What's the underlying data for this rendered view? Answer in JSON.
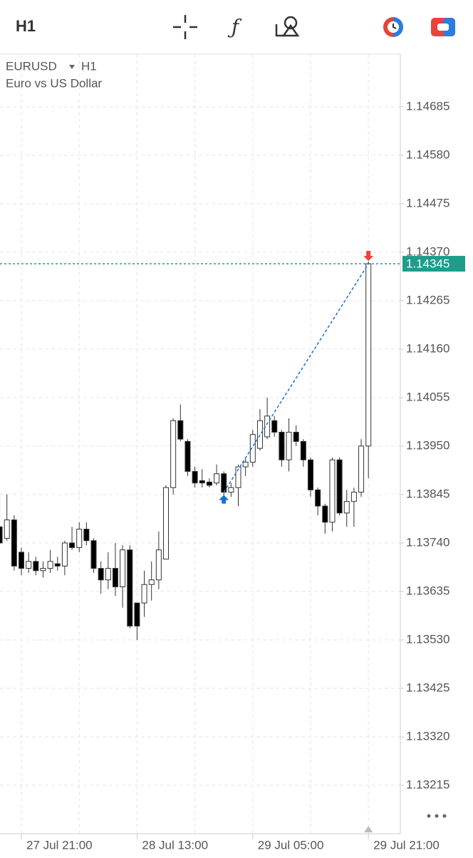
{
  "toolbar": {
    "timeframe": "H1"
  },
  "chart_data": {
    "type": "candlestick",
    "symbol": "EURUSD",
    "timeframe": "H1",
    "subtitle": "Euro vs US Dollar",
    "categories": [
      null,
      null,
      null,
      "27 Jul 21:00",
      null,
      null,
      null,
      null,
      null,
      null,
      null,
      null,
      null,
      null,
      null,
      null,
      null,
      null,
      null,
      "28 Jul 13:00",
      null,
      null,
      null,
      null,
      null,
      null,
      null,
      null,
      null,
      null,
      null,
      null,
      null,
      null,
      null,
      "29 Jul 05:00",
      null,
      null,
      null,
      null,
      null,
      null,
      null,
      null,
      null,
      null,
      null,
      null,
      null,
      null,
      null,
      "29 Jul 21:00"
    ],
    "open": [
      1.13775,
      1.1375,
      1.1379,
      1.1372,
      1.13685,
      1.137,
      1.1368,
      1.13685,
      1.13695,
      1.1369,
      1.1374,
      1.1373,
      1.1377,
      1.13745,
      1.13685,
      1.1366,
      1.13685,
      1.13645,
      1.13725,
      1.1361,
      1.1361,
      1.1365,
      1.1366,
      1.13705,
      1.1386,
      1.14005,
      1.1396,
      1.13895,
      1.13875,
      1.13872,
      1.1387,
      1.1389,
      1.1385,
      1.1386,
      1.13905,
      1.13915,
      1.13945,
      1.1397,
      1.14005,
      1.1398,
      1.1392,
      1.1398,
      1.1396,
      1.1392,
      1.13855,
      1.1382,
      1.13785,
      1.1392,
      1.13805,
      1.1383,
      1.1385,
      1.1395
    ],
    "high": [
      1.1385,
      1.13845,
      1.138,
      1.1373,
      1.1372,
      1.1371,
      1.137,
      1.13725,
      1.1371,
      1.13745,
      1.13775,
      1.13785,
      1.13785,
      1.1375,
      1.137,
      1.1372,
      1.1374,
      1.13735,
      1.13735,
      1.1361,
      1.1368,
      1.137,
      1.13765,
      1.13865,
      1.1401,
      1.1404,
      1.13965,
      1.13905,
      1.139,
      1.1388,
      1.1391,
      1.13895,
      1.1387,
      1.1391,
      1.13925,
      1.13985,
      1.1403,
      1.14055,
      1.14015,
      1.13985,
      1.1401,
      1.13995,
      1.13965,
      1.13925,
      1.1386,
      1.13825,
      1.13925,
      1.13925,
      1.13855,
      1.1386,
      1.13965,
      1.1435
    ],
    "low": [
      1.13735,
      1.13745,
      1.1368,
      1.1367,
      1.13675,
      1.1367,
      1.13665,
      1.13675,
      1.1368,
      1.1367,
      1.13725,
      1.1372,
      1.13735,
      1.13675,
      1.1363,
      1.1364,
      1.13625,
      1.136,
      1.13555,
      1.1353,
      1.1358,
      1.13615,
      1.1364,
      1.13705,
      1.13845,
      1.1396,
      1.13885,
      1.1386,
      1.1386,
      1.1386,
      1.13865,
      1.13825,
      1.1384,
      1.1382,
      1.13885,
      1.13905,
      1.1394,
      1.13965,
      1.1397,
      1.13905,
      1.13895,
      1.1395,
      1.13905,
      1.1384,
      1.138,
      1.1376,
      1.13765,
      1.138,
      1.13775,
      1.13775,
      1.1384,
      1.1388
    ],
    "close": [
      1.1374,
      1.1379,
      1.1369,
      1.13685,
      1.137,
      1.1368,
      1.13685,
      1.137,
      1.1369,
      1.1374,
      1.1373,
      1.1377,
      1.13745,
      1.13685,
      1.1366,
      1.13685,
      1.13645,
      1.13725,
      1.1356,
      1.1356,
      1.1365,
      1.1366,
      1.13725,
      1.1386,
      1.14005,
      1.13965,
      1.13895,
      1.1387,
      1.1387,
      1.13865,
      1.1389,
      1.1385,
      1.1386,
      1.13905,
      1.13915,
      1.13975,
      1.14005,
      1.14015,
      1.1398,
      1.1392,
      1.1398,
      1.1396,
      1.1392,
      1.13855,
      1.1382,
      1.13785,
      1.1392,
      1.13805,
      1.1383,
      1.1385,
      1.1395,
      1.14345
    ],
    "up_color": "#ffffff",
    "down_color": "#000000",
    "ylim": [
      1.1311,
      1.14799
    ],
    "yticks": [
      1.14685,
      {
        "value": 1.1458,
        "label": "1.14580"
      },
      1.14475,
      {
        "value": 1.1437,
        "label": "1.14370"
      },
      1.14265,
      {
        "value": 1.1416,
        "label": "1.14160"
      },
      1.14055,
      {
        "value": 1.1395,
        "label": "1.13950"
      },
      1.13845,
      {
        "value": 1.1374,
        "label": "1.13740"
      },
      1.13635,
      {
        "value": 1.1353,
        "label": "1.13530"
      },
      1.13425,
      {
        "value": 1.1332,
        "label": "1.13320"
      },
      1.13215
    ],
    "grid": true,
    "last_price": 1.14345,
    "last_price_color": "#1e9c8c",
    "trade": {
      "open_bar": 31,
      "open_price": 1.1385,
      "close_bar": 51,
      "close_price": 1.14345,
      "color": "#1a6fd1"
    }
  }
}
